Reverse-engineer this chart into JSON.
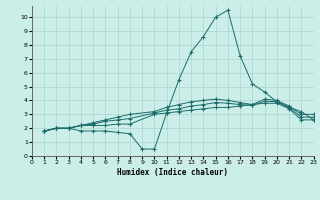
{
  "xlabel": "Humidex (Indice chaleur)",
  "bg_color": "#cceee8",
  "grid_color": "#aad4ce",
  "line_color": "#1a6b6b",
  "xlim": [
    0,
    23
  ],
  "ylim": [
    0,
    10.8
  ],
  "xticks": [
    0,
    1,
    2,
    3,
    4,
    5,
    6,
    7,
    8,
    9,
    10,
    11,
    12,
    13,
    14,
    15,
    16,
    17,
    18,
    19,
    20,
    21,
    22,
    23
  ],
  "yticks": [
    0,
    1,
    2,
    3,
    4,
    5,
    6,
    7,
    8,
    9,
    10
  ],
  "series": [
    {
      "x": [
        1,
        2,
        3,
        4,
        5,
        6,
        7,
        8,
        9,
        10,
        11,
        12,
        13,
        14,
        15,
        16,
        17,
        18,
        19,
        20,
        21,
        22,
        23
      ],
      "y": [
        1.8,
        2.0,
        2.0,
        1.8,
        1.8,
        1.8,
        1.7,
        1.6,
        0.5,
        0.5,
        3.1,
        5.5,
        7.5,
        8.6,
        10.0,
        10.5,
        7.2,
        5.2,
        4.6,
        3.9,
        3.5,
        3.2,
        2.6
      ]
    },
    {
      "x": [
        1,
        2,
        3,
        4,
        5,
        6,
        7,
        8,
        10,
        11,
        12,
        13,
        14,
        15,
        16,
        17,
        18,
        19,
        20,
        21,
        22,
        23
      ],
      "y": [
        1.8,
        2.0,
        2.0,
        2.2,
        2.2,
        2.2,
        2.3,
        2.3,
        3.0,
        3.1,
        3.2,
        3.3,
        3.4,
        3.5,
        3.5,
        3.6,
        3.7,
        3.8,
        3.8,
        3.4,
        2.6,
        2.6
      ]
    },
    {
      "x": [
        1,
        2,
        3,
        4,
        5,
        6,
        7,
        8,
        10,
        11,
        12,
        13,
        14,
        15,
        16,
        17,
        18,
        19,
        20,
        21,
        22,
        23
      ],
      "y": [
        1.8,
        2.0,
        2.0,
        2.2,
        2.3,
        2.5,
        2.6,
        2.7,
        3.1,
        3.3,
        3.4,
        3.6,
        3.7,
        3.85,
        3.8,
        3.7,
        3.65,
        3.95,
        3.9,
        3.5,
        2.8,
        2.8
      ]
    },
    {
      "x": [
        1,
        2,
        3,
        4,
        5,
        6,
        7,
        8,
        10,
        11,
        12,
        13,
        14,
        15,
        16,
        17,
        18,
        19,
        20,
        21,
        22,
        23
      ],
      "y": [
        1.8,
        2.0,
        2.0,
        2.2,
        2.4,
        2.6,
        2.8,
        3.0,
        3.2,
        3.5,
        3.7,
        3.9,
        4.0,
        4.1,
        4.0,
        3.85,
        3.7,
        4.1,
        4.0,
        3.6,
        3.0,
        3.0
      ]
    }
  ]
}
